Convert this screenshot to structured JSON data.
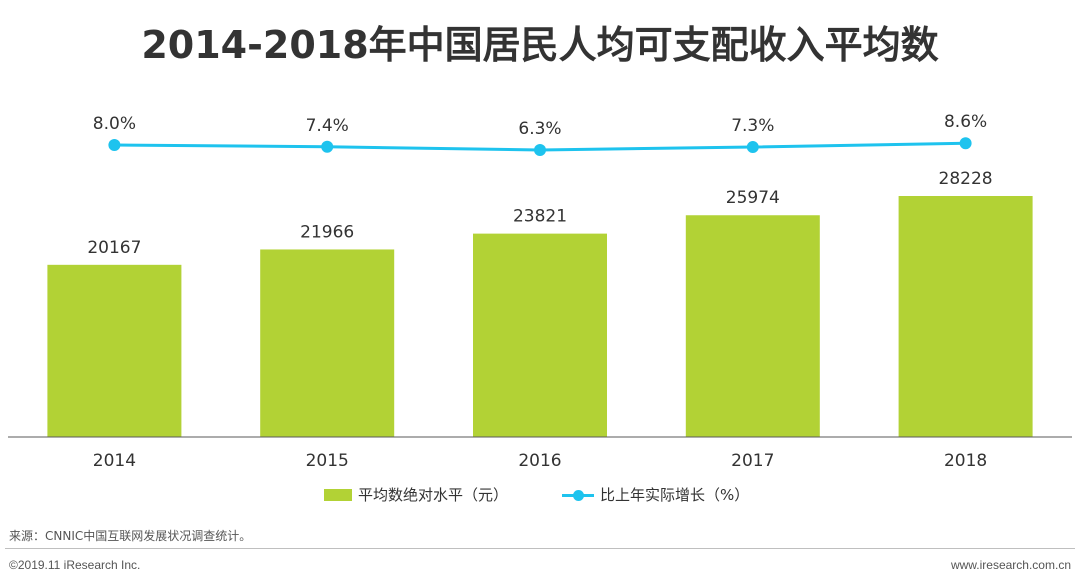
{
  "title": "2014-2018年中国居民人均可支配收入平均数",
  "chart_data": {
    "type": "bar",
    "categories": [
      "2014",
      "2015",
      "2016",
      "2017",
      "2018"
    ],
    "series": [
      {
        "name": "平均数绝对水平（元）",
        "type": "bar",
        "color": "#b2d235",
        "values": [
          20167,
          21966,
          23821,
          25974,
          28228
        ],
        "value_labels": [
          "20167",
          "21966",
          "23821",
          "25974",
          "28228"
        ]
      },
      {
        "name": "比上年实际增长（%）",
        "type": "line",
        "color": "#1ec3ee",
        "values": [
          8.0,
          7.4,
          6.3,
          7.3,
          8.6
        ],
        "value_labels": [
          "8.0%",
          "7.4%",
          "6.3%",
          "7.3%",
          "8.6%"
        ]
      }
    ],
    "ylim_bar": [
      0,
      30000
    ],
    "grid": false,
    "legend_position": "bottom"
  },
  "source": "来源：CNNIC中国互联网发展状况调查统计。",
  "copyright": "©2019.11 iResearch Inc.",
  "website": "www.iresearch.com.cn"
}
